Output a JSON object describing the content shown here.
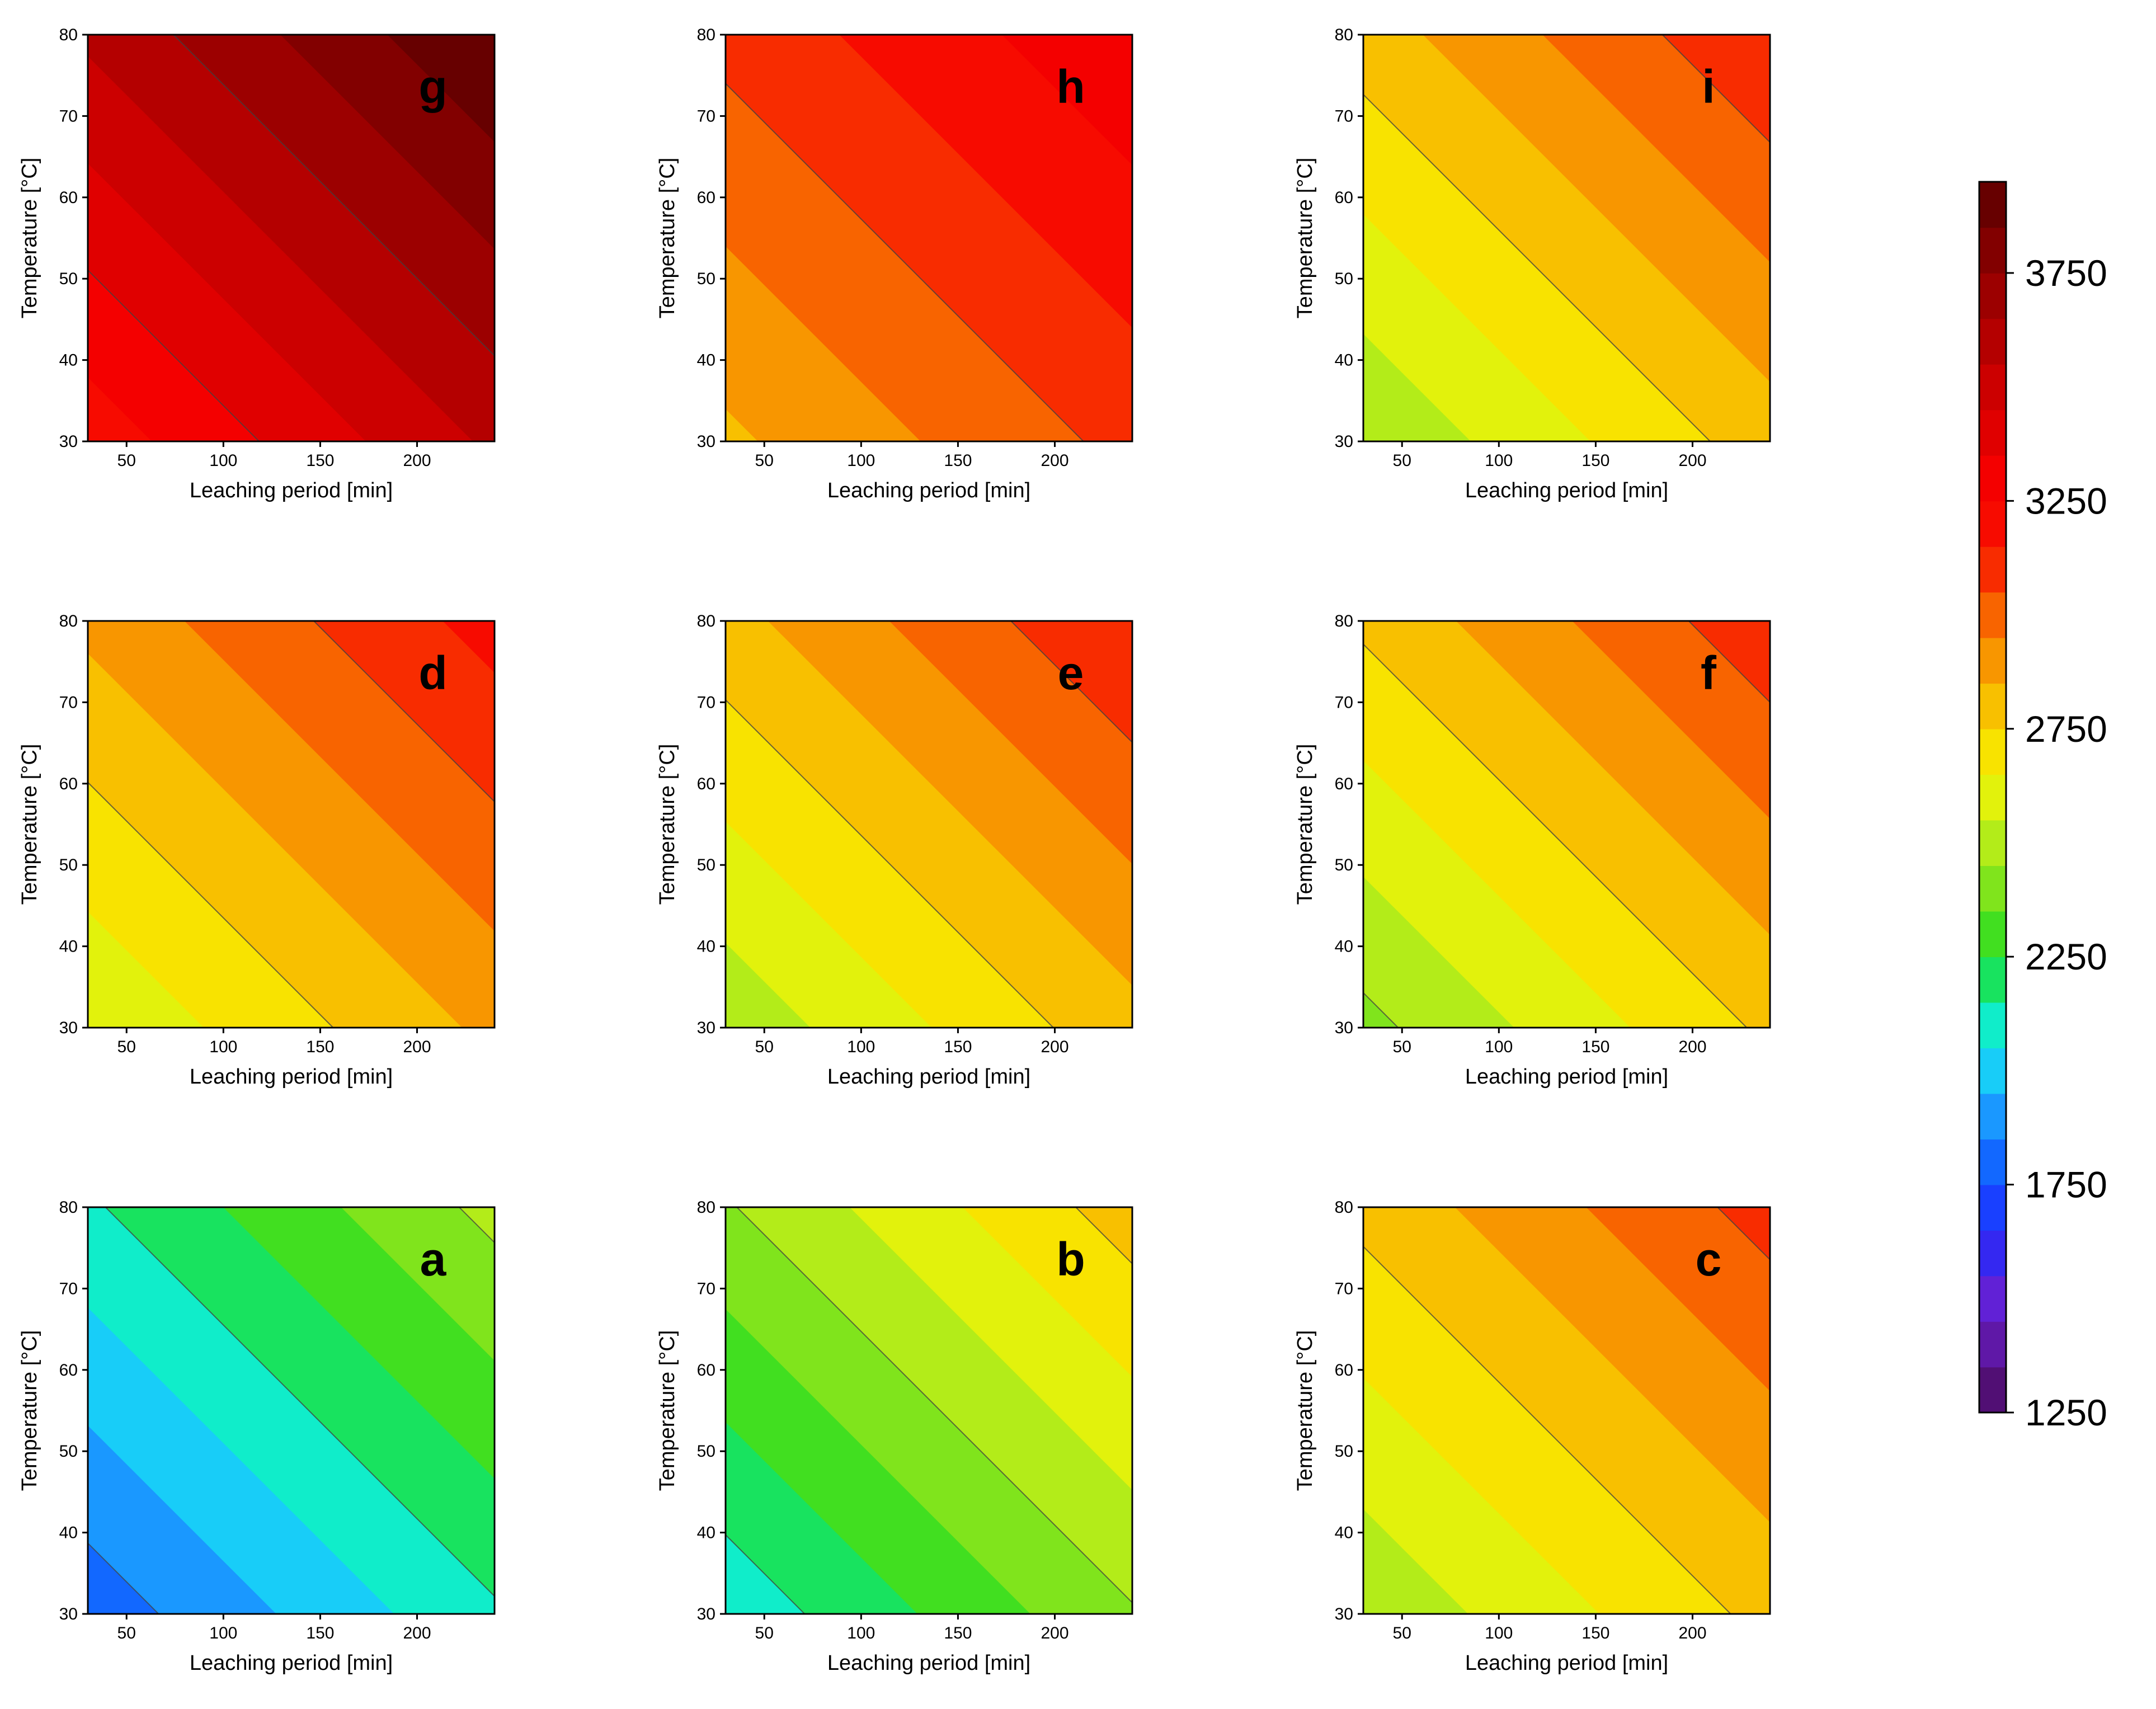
{
  "chart_data": {
    "type": "contour",
    "layout": "3x3 grid",
    "xlabel": "Leaching period [min]",
    "ylabel": "Temperature [°C]",
    "xlim": [
      30,
      240
    ],
    "ylim": [
      30,
      80
    ],
    "xticks": [
      50,
      100,
      150,
      200
    ],
    "yticks": [
      30,
      40,
      50,
      60,
      70,
      80
    ],
    "colorbar": {
      "range": [
        1250,
        3950
      ],
      "ticks": [
        1250,
        1750,
        2250,
        2750,
        3250,
        3750
      ],
      "levels": 27,
      "stops": [
        {
          "v": 1250,
          "c": "#4a0a5a"
        },
        {
          "v": 1480,
          "c": "#6a1fd0"
        },
        {
          "v": 1650,
          "c": "#1d2cff"
        },
        {
          "v": 1800,
          "c": "#1268ff"
        },
        {
          "v": 1950,
          "c": "#1eb0ff"
        },
        {
          "v": 2060,
          "c": "#10f0f0"
        },
        {
          "v": 2160,
          "c": "#10e890"
        },
        {
          "v": 2250,
          "c": "#22dd22"
        },
        {
          "v": 2400,
          "c": "#80e41c"
        },
        {
          "v": 2550,
          "c": "#ccf018"
        },
        {
          "v": 2650,
          "c": "#f8f400"
        },
        {
          "v": 2780,
          "c": "#f8c800"
        },
        {
          "v": 2900,
          "c": "#f89600"
        },
        {
          "v": 3020,
          "c": "#f85a00"
        },
        {
          "v": 3150,
          "c": "#f81000"
        },
        {
          "v": 3300,
          "c": "#f40000"
        },
        {
          "v": 3500,
          "c": "#cc0000"
        },
        {
          "v": 3700,
          "c": "#9c0000"
        },
        {
          "v": 3950,
          "c": "#5a0000"
        }
      ]
    },
    "panels": [
      {
        "label": "g",
        "value_min": 3190,
        "value_max": 3950
      },
      {
        "label": "h",
        "value_min": 2830,
        "value_max": 3330
      },
      {
        "label": "i",
        "value_min": 2460,
        "value_max": 3140
      },
      {
        "label": "d",
        "value_min": 2560,
        "value_max": 3190
      },
      {
        "label": "e",
        "value_min": 2480,
        "value_max": 3150
      },
      {
        "label": "f",
        "value_min": 2420,
        "value_max": 3120
      },
      {
        "label": "a",
        "value_min": 1790,
        "value_max": 2480
      },
      {
        "label": "b",
        "value_min": 2080,
        "value_max": 2800
      },
      {
        "label": "c",
        "value_min": 2470,
        "value_max": 3090
      }
    ]
  }
}
